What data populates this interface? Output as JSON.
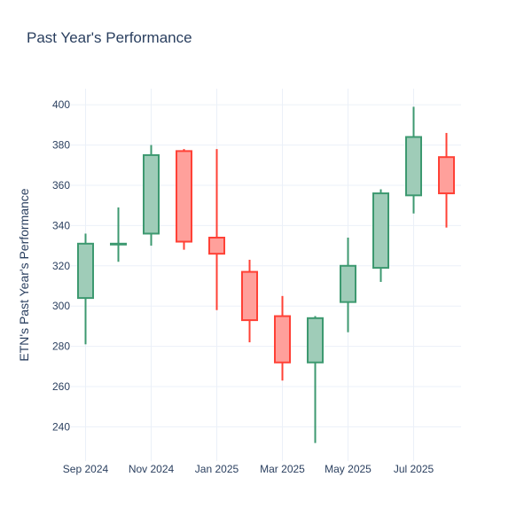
{
  "chart_data": {
    "type": "candlestick",
    "title": "Past Year's Performance",
    "xlabel": "",
    "ylabel": "ETN's Past Year's Performance",
    "ylim": [
      223,
      408
    ],
    "yticks": [
      240,
      260,
      280,
      300,
      320,
      340,
      360,
      380,
      400
    ],
    "xticks": [
      {
        "label": "Sep 2024",
        "month_index": 0
      },
      {
        "label": "Nov 2024",
        "month_index": 2
      },
      {
        "label": "Jan 2025",
        "month_index": 4
      },
      {
        "label": "Mar 2025",
        "month_index": 6
      },
      {
        "label": "May 2025",
        "month_index": 8
      },
      {
        "label": "Jul 2025",
        "month_index": 10
      }
    ],
    "increasing_color": "#3d9970",
    "increasing_fill": "#9fccb8",
    "decreasing_color": "#ff4136",
    "decreasing_fill": "#ffa09b",
    "candles": [
      {
        "month": "2024-09",
        "open": 304,
        "high": 336,
        "low": 281,
        "close": 331
      },
      {
        "month": "2024-10",
        "open": 331,
        "high": 349,
        "low": 322,
        "close": 331
      },
      {
        "month": "2024-11",
        "open": 336,
        "high": 380,
        "low": 330,
        "close": 375
      },
      {
        "month": "2024-12",
        "open": 377,
        "high": 378,
        "low": 328,
        "close": 332
      },
      {
        "month": "2025-01",
        "open": 334,
        "high": 378,
        "low": 298,
        "close": 326
      },
      {
        "month": "2025-02",
        "open": 317,
        "high": 323,
        "low": 282,
        "close": 293
      },
      {
        "month": "2025-03",
        "open": 295,
        "high": 305,
        "low": 263,
        "close": 272
      },
      {
        "month": "2025-04",
        "open": 272,
        "high": 295,
        "low": 232,
        "close": 294
      },
      {
        "month": "2025-05",
        "open": 302,
        "high": 334,
        "low": 287,
        "close": 320
      },
      {
        "month": "2025-06",
        "open": 319,
        "high": 358,
        "low": 312,
        "close": 356
      },
      {
        "month": "2025-07",
        "open": 355,
        "high": 399,
        "low": 346,
        "close": 384
      },
      {
        "month": "2025-08",
        "open": 374,
        "high": 386,
        "low": 339,
        "close": 356
      }
    ]
  }
}
